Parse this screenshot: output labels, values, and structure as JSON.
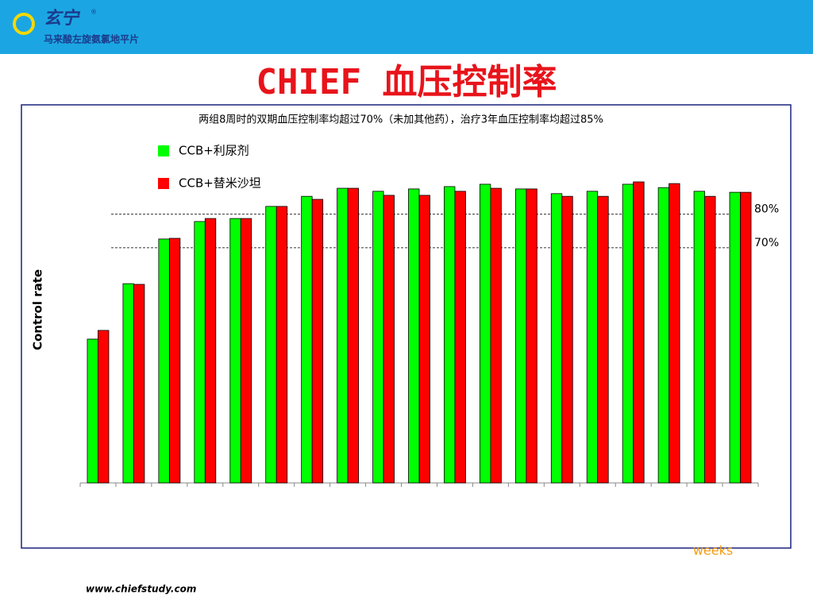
{
  "header": {
    "brand": "玄宁",
    "mark": "®",
    "product": "马来酸左旋氨氯地平片"
  },
  "footer": "www.chiefstudy.com",
  "chart_data": {
    "type": "bar",
    "title": "CHIEF 血压控制率",
    "subtitle": "两组8周时的双期血压控制率均超过70%（未加其他药），治疗3年血压控制率均超过85%",
    "x_label": "weeks",
    "y_label": "Control rate",
    "categories": [
      null,
      null,
      null,
      null,
      null,
      null,
      null,
      null,
      null,
      null,
      null,
      null,
      null,
      null,
      null,
      null,
      null,
      null,
      null
    ],
    "series": [
      {
        "name": "CCB+利尿剂",
        "color": "#00ff00",
        "values": [
          42.8,
          59.3,
          72.6,
          77.8,
          78.7,
          82.3,
          85.3,
          87.7,
          86.8,
          87.5,
          88.2,
          88.9,
          87.5,
          86.1,
          86.8,
          88.9,
          87.9,
          86.8,
          86.5
        ]
      },
      {
        "name": "CCB+替米沙坦",
        "color": "#ff0000",
        "values": [
          45.4,
          59.1,
          72.8,
          78.7,
          78.7,
          82.3,
          84.4,
          87.7,
          85.6,
          85.6,
          86.8,
          87.7,
          87.5,
          85.3,
          85.3,
          89.6,
          89.1,
          85.3,
          86.5
        ]
      }
    ],
    "reference_lines": [
      {
        "value": 80,
        "label": "80%"
      },
      {
        "value": 70,
        "label": "70%"
      }
    ],
    "ylim": [
      0,
      100
    ]
  }
}
